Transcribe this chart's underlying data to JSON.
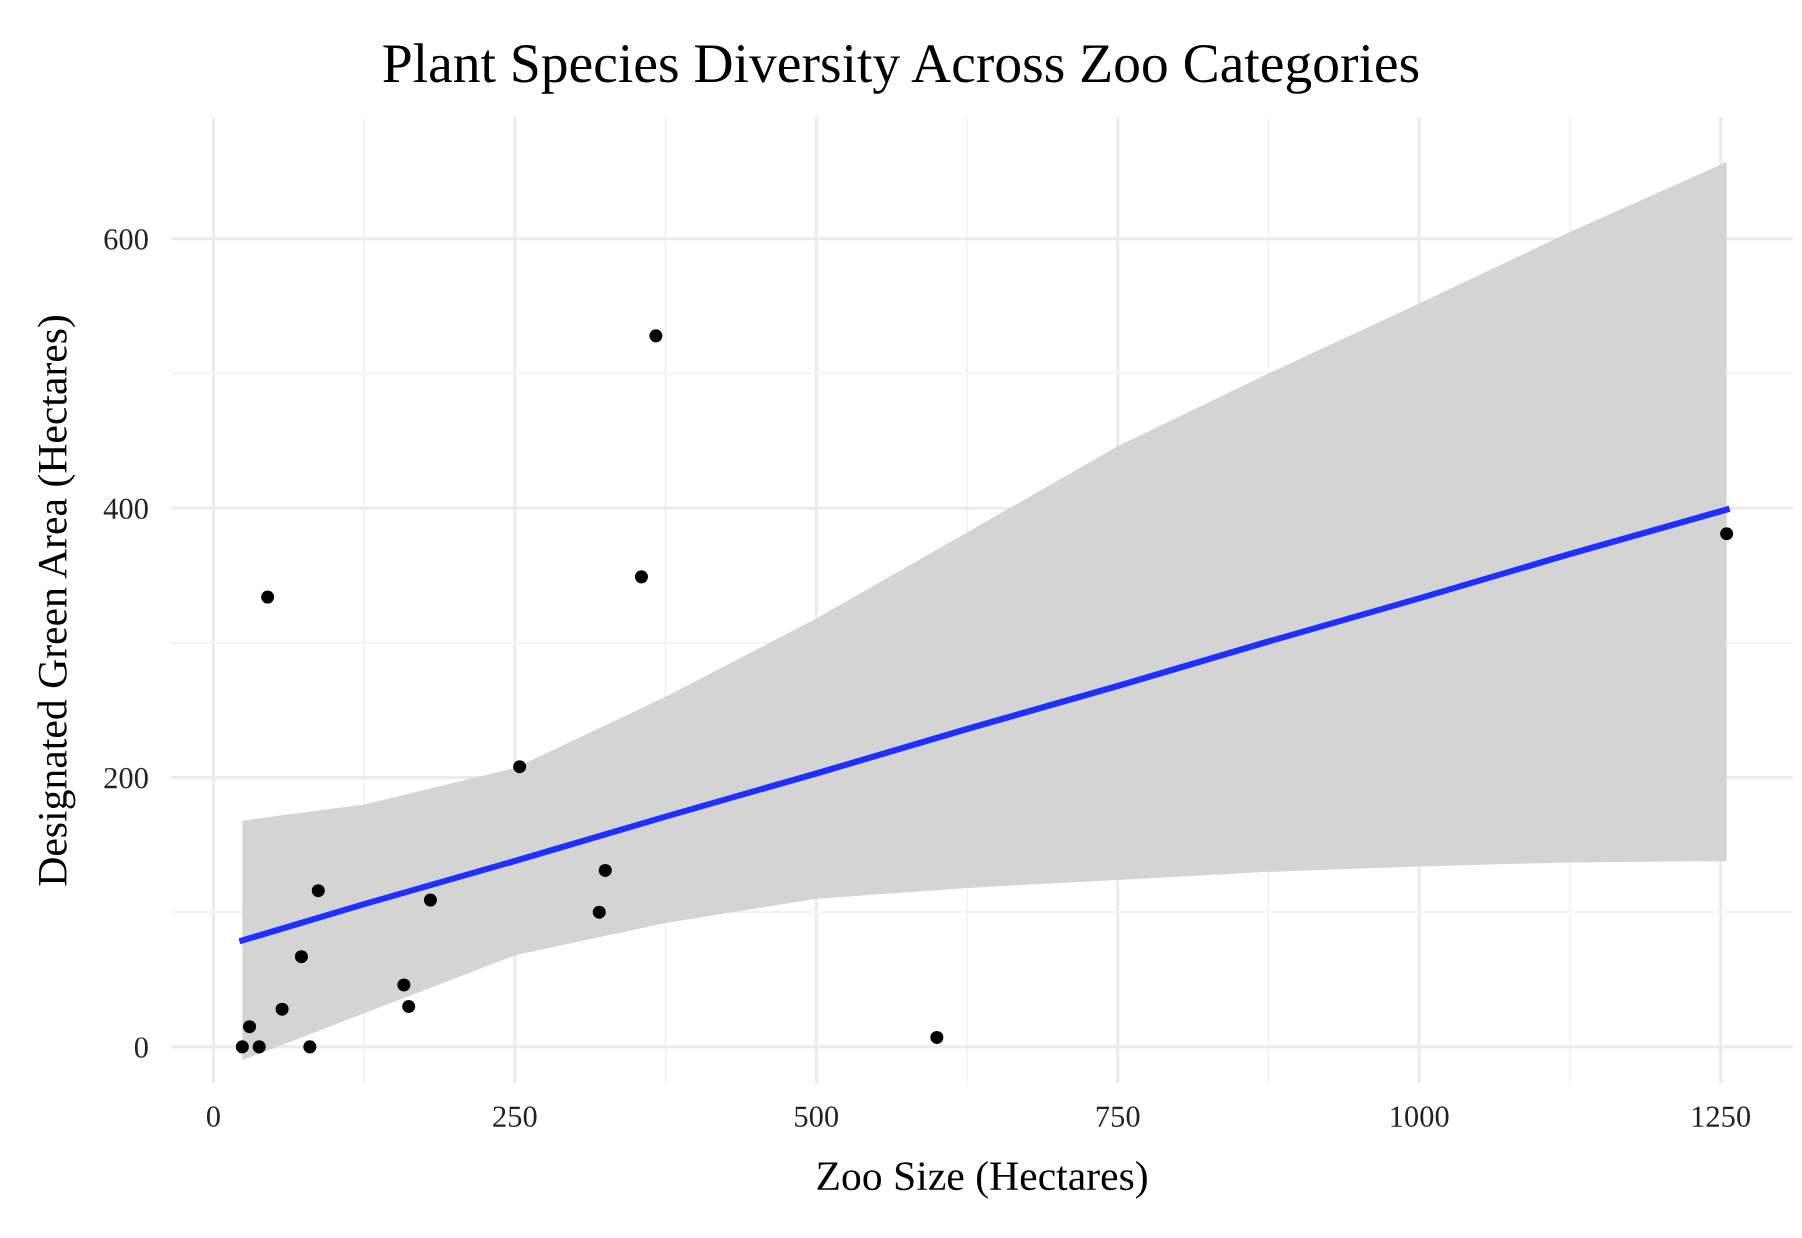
{
  "chart_data": {
    "type": "scatter",
    "title": "Plant Species Diversity Across Zoo Categories",
    "xlabel": "Zoo Size (Hectares)",
    "ylabel": "Designated Green Area (Hectares)",
    "xlim": [
      -35,
      1310
    ],
    "ylim": [
      -27,
      690
    ],
    "xticks": [
      0,
      250,
      500,
      750,
      1000,
      1250
    ],
    "yticks": [
      0,
      200,
      400,
      600
    ],
    "grid": true,
    "series": [
      {
        "marker": "circle",
        "color": "#000000",
        "x": [
          24,
          30,
          38,
          45,
          57,
          73,
          80,
          87,
          158,
          162,
          180,
          254,
          320,
          325,
          355,
          367,
          600,
          1255
        ],
        "values": [
          0,
          15,
          0,
          334,
          28,
          67,
          0,
          116,
          46,
          30,
          109,
          208,
          100,
          131,
          349,
          528,
          7,
          381
        ]
      },
      {
        "type": "line",
        "color": "#1f2fff",
        "line_style": "solid",
        "x": [
          24,
          125,
          250,
          375,
          500,
          625,
          750,
          875,
          1000,
          1125,
          1255
        ],
        "values": [
          79,
          106,
          138,
          171,
          203,
          236,
          268,
          301,
          333,
          366,
          399
        ],
        "lower": [
          -10,
          25,
          68,
          92,
          110,
          118,
          124,
          130,
          134,
          137,
          138
        ],
        "upper": [
          168,
          180,
          207,
          260,
          318,
          382,
          446,
          500,
          552,
          605,
          657
        ]
      }
    ]
  }
}
